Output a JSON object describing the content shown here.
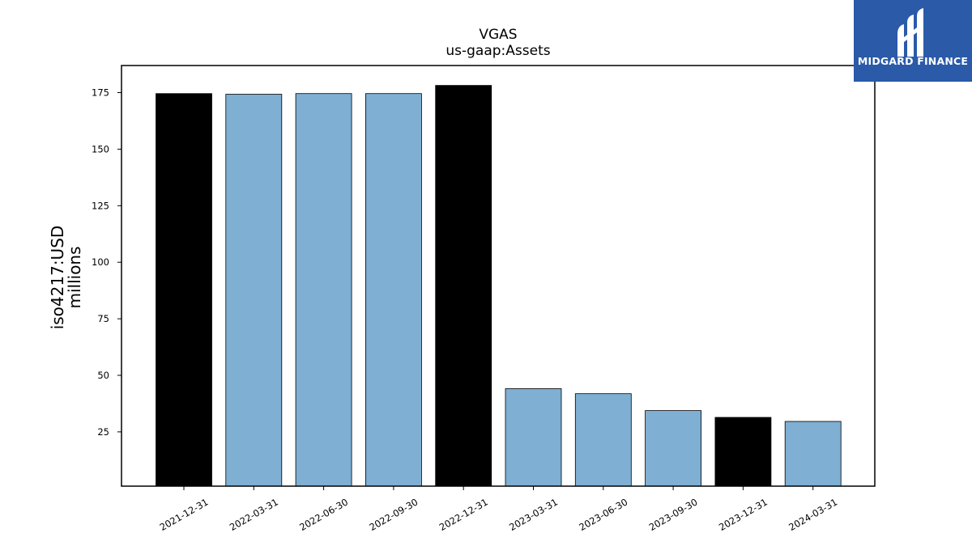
{
  "brand": {
    "name": "MIDGARD FINANCE",
    "logo_color": "#2a5aa8"
  },
  "chart_data": {
    "type": "bar",
    "title": "VGAS",
    "subtitle": "us-gaap:Assets",
    "ylabel": "iso4217:USD",
    "ylabel_unit": "millions",
    "xlabel": "",
    "categories": [
      "2021-12-31",
      "2022-03-31",
      "2022-06-30",
      "2022-09-30",
      "2022-12-31",
      "2023-03-31",
      "2023-06-30",
      "2023-09-30",
      "2023-12-31",
      "2024-03-31"
    ],
    "values": [
      174.6,
      174.3,
      174.6,
      174.6,
      178.2,
      44.1,
      41.9,
      34.4,
      31.4,
      29.6
    ],
    "bar_colors": [
      "#000000",
      "#7fafd2",
      "#7fafd2",
      "#7fafd2",
      "#000000",
      "#7fafd2",
      "#7fafd2",
      "#7fafd2",
      "#000000",
      "#7fafd2"
    ],
    "yticks": [
      25,
      50,
      75,
      100,
      125,
      150,
      175
    ],
    "ylim": [
      1,
      187
    ],
    "grid": false,
    "legend": "none"
  }
}
